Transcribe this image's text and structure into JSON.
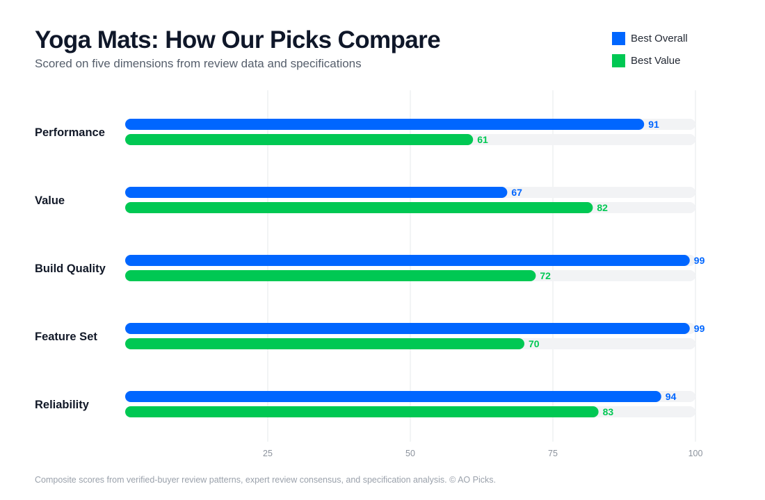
{
  "header": {
    "title": "Yoga Mats: How Our Picks Compare",
    "subtitle": "Scored on five dimensions from review data and specifications"
  },
  "legend": [
    {
      "label": "Best Overall",
      "color": "#0066ff"
    },
    {
      "label": "Best Value",
      "color": "#00c853"
    }
  ],
  "footnote": "Composite scores from verified-buyer review patterns, expert review consensus, and specification analysis. © AO Picks.",
  "colors": {
    "track": "#f2f3f5",
    "grid": "#e6e8eb"
  },
  "chart_data": {
    "type": "bar",
    "orientation": "horizontal",
    "title": "Yoga Mats: How Our Picks Compare",
    "subtitle": "Scored on five dimensions from review data and specifications",
    "categories": [
      "Performance",
      "Value",
      "Build Quality",
      "Feature Set",
      "Reliability"
    ],
    "series": [
      {
        "name": "Best Overall",
        "color": "#0066ff",
        "values": [
          91,
          67,
          99,
          99,
          94
        ]
      },
      {
        "name": "Best Value",
        "color": "#00c853",
        "values": [
          61,
          82,
          72,
          70,
          83
        ]
      }
    ],
    "xlim": [
      0,
      100
    ],
    "xticks": [
      25,
      50,
      75,
      100
    ],
    "grid": true,
    "legend_position": "top-right"
  }
}
